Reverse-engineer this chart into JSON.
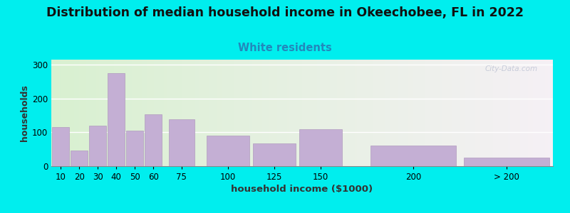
{
  "title": "Distribution of median household income in Okeechobee, FL in 2022",
  "subtitle": "White residents",
  "xlabel": "household income ($1000)",
  "ylabel": "households",
  "background_outer": "#00EEEE",
  "background_inner_left": "#d8f0d0",
  "background_inner_right": "#f5f0f5",
  "bar_color": "#c4afd4",
  "bar_edge_color": "#b09abe",
  "title_fontsize": 12.5,
  "subtitle_fontsize": 10.5,
  "subtitle_color": "#2288bb",
  "ylabel_fontsize": 9,
  "xlabel_fontsize": 9.5,
  "tick_fontsize": 8.5,
  "categories": [
    "10",
    "20",
    "30",
    "40",
    "50",
    "60",
    "75",
    "100",
    "125",
    "150",
    "200",
    "> 200"
  ],
  "left_edges": [
    5,
    15,
    25,
    35,
    45,
    55,
    67.5,
    87.5,
    112.5,
    137.5,
    175,
    225
  ],
  "widths": [
    10,
    10,
    10,
    10,
    10,
    10,
    15,
    25,
    25,
    25,
    50,
    50
  ],
  "values": [
    115,
    47,
    120,
    275,
    104,
    153,
    138,
    90,
    68,
    110,
    60,
    25
  ],
  "tick_positions": [
    10,
    20,
    30,
    40,
    50,
    60,
    75,
    100,
    125,
    150,
    200,
    250
  ],
  "xlim": [
    5,
    275
  ],
  "ylim": [
    0,
    315
  ],
  "yticks": [
    0,
    100,
    200,
    300
  ],
  "watermark": "City-Data.com"
}
